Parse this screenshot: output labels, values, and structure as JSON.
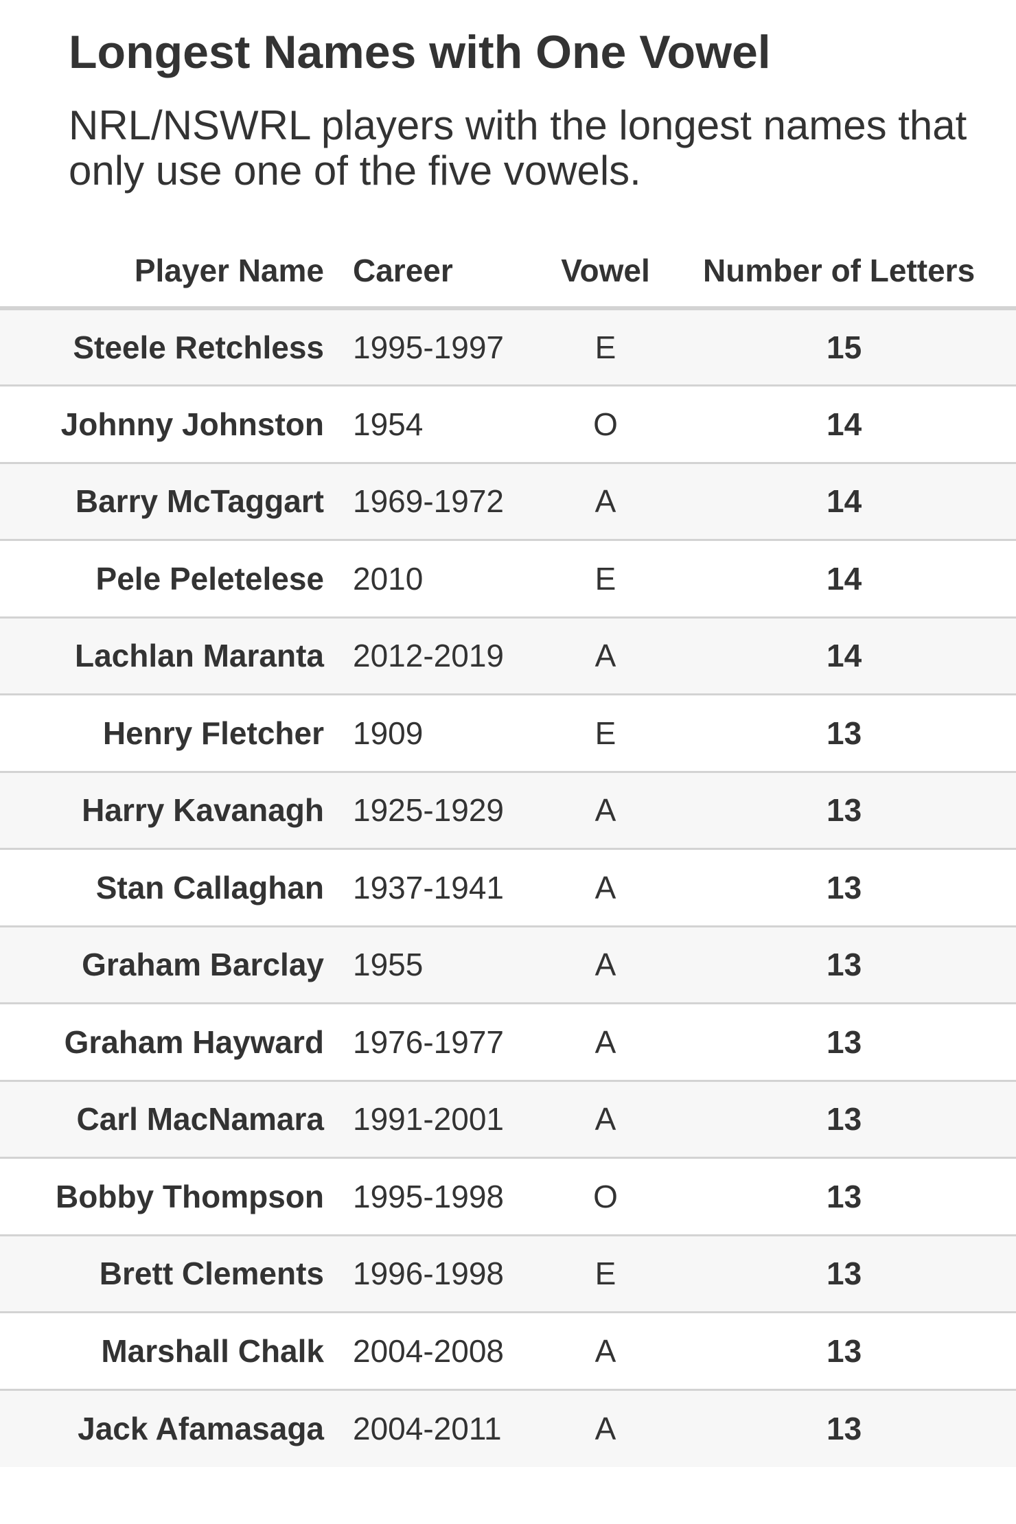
{
  "title": "Longest Names with One Vowel",
  "subtitle": "NRL/NSWRL players with the longest names that only use one of the five vowels.",
  "table": {
    "columns": [
      "Player Name",
      "Career",
      "Vowel",
      "Number of Letters"
    ],
    "rows": [
      {
        "name": "Steele Retchless",
        "career": "1995-1997",
        "vowel": "E",
        "letters": "15"
      },
      {
        "name": "Johnny Johnston",
        "career": "1954",
        "vowel": "O",
        "letters": "14"
      },
      {
        "name": "Barry McTaggart",
        "career": "1969-1972",
        "vowel": "A",
        "letters": "14"
      },
      {
        "name": "Pele Peletelese",
        "career": "2010",
        "vowel": "E",
        "letters": "14"
      },
      {
        "name": "Lachlan Maranta",
        "career": "2012-2019",
        "vowel": "A",
        "letters": "14"
      },
      {
        "name": "Henry Fletcher",
        "career": "1909",
        "vowel": "E",
        "letters": "13"
      },
      {
        "name": "Harry Kavanagh",
        "career": "1925-1929",
        "vowel": "A",
        "letters": "13"
      },
      {
        "name": "Stan Callaghan",
        "career": "1937-1941",
        "vowel": "A",
        "letters": "13"
      },
      {
        "name": "Graham Barclay",
        "career": "1955",
        "vowel": "A",
        "letters": "13"
      },
      {
        "name": "Graham Hayward",
        "career": "1976-1977",
        "vowel": "A",
        "letters": "13"
      },
      {
        "name": "Carl MacNamara",
        "career": "1991-2001",
        "vowel": "A",
        "letters": "13"
      },
      {
        "name": "Bobby Thompson",
        "career": "1995-1998",
        "vowel": "O",
        "letters": "13"
      },
      {
        "name": "Brett Clements",
        "career": "1996-1998",
        "vowel": "E",
        "letters": "13"
      },
      {
        "name": "Marshall Chalk",
        "career": "2004-2008",
        "vowel": "A",
        "letters": "13"
      },
      {
        "name": "Jack Afamasaga",
        "career": "2004-2011",
        "vowel": "A",
        "letters": "13"
      }
    ]
  },
  "colors": {
    "text": "#333333",
    "row_stripe": "#f7f7f7",
    "row_plain": "#ffffff",
    "rule": "#d3d3d3"
  }
}
